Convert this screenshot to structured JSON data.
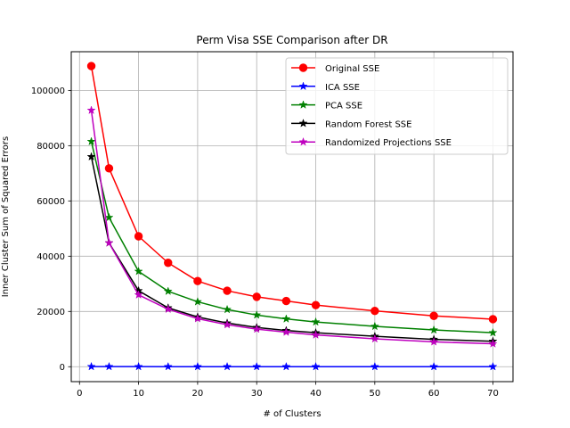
{
  "chart_data": {
    "type": "line",
    "title": "Perm Visa SSE Comparison after DR",
    "xlabel": "# of Clusters",
    "ylabel": "Inner Cluster Sum of Squared Errors",
    "x": [
      2,
      5,
      10,
      15,
      20,
      25,
      30,
      35,
      40,
      50,
      60,
      70
    ],
    "xlim": [
      -1.4,
      73.4
    ],
    "ylim": [
      -5400,
      114000
    ],
    "xticks": [
      0,
      10,
      20,
      30,
      40,
      50,
      60,
      70
    ],
    "yticks": [
      0,
      20000,
      40000,
      60000,
      80000,
      100000
    ],
    "grid": true,
    "legend_position": "top-right",
    "series": [
      {
        "name": "Original SSE",
        "color": "#ff0000",
        "marker": "circle",
        "values": [
          108800,
          71800,
          47200,
          37600,
          31000,
          27500,
          25300,
          23800,
          22300,
          20200,
          18400,
          17200
        ]
      },
      {
        "name": "ICA SSE",
        "color": "#0000ff",
        "marker": "star",
        "values": [
          50,
          40,
          30,
          25,
          22,
          20,
          18,
          17,
          16,
          15,
          14,
          13
        ]
      },
      {
        "name": "PCA SSE",
        "color": "#008000",
        "marker": "star",
        "values": [
          81500,
          54000,
          34500,
          27300,
          23500,
          20700,
          18700,
          17300,
          16200,
          14600,
          13300,
          12300
        ]
      },
      {
        "name": "Random Forest SSE",
        "color": "#000000",
        "marker": "star",
        "values": [
          76000,
          44800,
          27500,
          21300,
          18000,
          15800,
          14200,
          13100,
          12300,
          11000,
          9900,
          9200
        ]
      },
      {
        "name": "Randomized Projections SSE",
        "color": "#bf00bf",
        "marker": "star",
        "values": [
          92800,
          44800,
          26000,
          20800,
          17400,
          15200,
          13600,
          12500,
          11500,
          10100,
          9000,
          8300
        ]
      }
    ]
  }
}
